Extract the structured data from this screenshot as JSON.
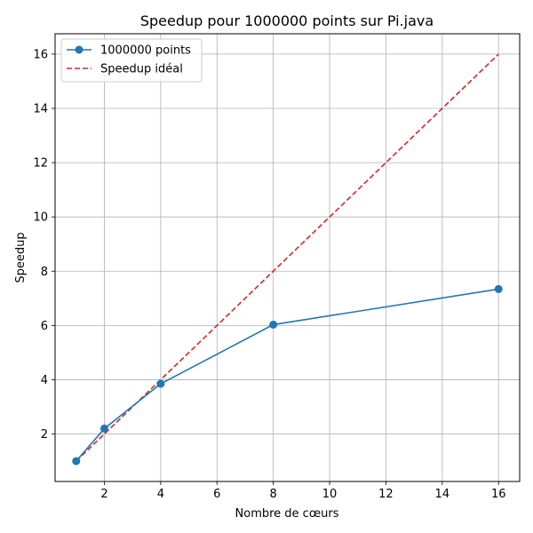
{
  "chart_data": {
    "type": "line",
    "title": "Speedup pour 1000000 points sur Pi.java",
    "xlabel": "Nombre de cœurs",
    "ylabel": "Speedup",
    "xlim": [
      0.25,
      16.75
    ],
    "ylim": [
      0.25,
      16.75
    ],
    "xticks": [
      2,
      4,
      6,
      8,
      10,
      12,
      14,
      16
    ],
    "yticks": [
      2,
      4,
      6,
      8,
      10,
      12,
      14,
      16
    ],
    "grid": true,
    "legend_position": "top-left",
    "series": [
      {
        "name": "1000000 points",
        "style": "solid",
        "marker": "circle",
        "color": "#1f77b4",
        "x": [
          1,
          2,
          4,
          8,
          16
        ],
        "y": [
          1.0,
          2.2,
          3.85,
          6.03,
          7.34
        ]
      },
      {
        "name": "Speedup idéal",
        "style": "dashed",
        "marker": "none",
        "color": "#d62728",
        "x": [
          1,
          2,
          4,
          8,
          16
        ],
        "y": [
          1,
          2,
          4,
          8,
          16
        ]
      }
    ]
  }
}
